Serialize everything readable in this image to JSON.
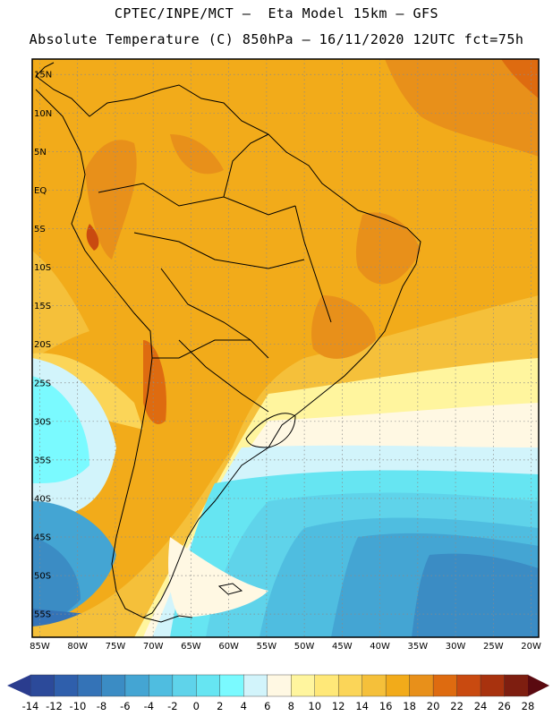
{
  "header": {
    "line1": "CPTEC/INPE/MCT –  Eta Model 15km – GFS",
    "line2": "Absolute Temperature (C) 850hPa – 16/11/2020 12UTC fct=75h"
  },
  "map": {
    "lon_range": [
      -86,
      -19
    ],
    "lat_range": [
      -58,
      17
    ],
    "lat_ticks": [
      "15N",
      "10N",
      "5N",
      "EQ",
      "5S",
      "10S",
      "15S",
      "20S",
      "25S",
      "30S",
      "35S",
      "40S",
      "45S",
      "50S",
      "55S"
    ],
    "lon_ticks": [
      "85W",
      "80W",
      "75W",
      "70W",
      "65W",
      "60W",
      "55W",
      "50W",
      "45W",
      "40W",
      "35W",
      "30W",
      "25W",
      "20W"
    ],
    "gridlines": "dotted"
  },
  "colorbar": {
    "labels": [
      "-14",
      "-12",
      "-10",
      "-8",
      "-6",
      "-4",
      "-2",
      "0",
      "2",
      "4",
      "6",
      "8",
      "10",
      "12",
      "14",
      "16",
      "18",
      "20",
      "22",
      "24",
      "26",
      "28"
    ],
    "low_color": "#2a3c8e",
    "high_color": "#5a0a10",
    "colors": [
      "#2c4a9a",
      "#2f5fac",
      "#3473b7",
      "#3b8cc4",
      "#44a5d3",
      "#4fbde0",
      "#5fd3ea",
      "#66e5f2",
      "#7afaff",
      "#d2f4fb",
      "#fff8e3",
      "#fff59e",
      "#ffe878",
      "#fbd558",
      "#f5c03a",
      "#f2ab1a",
      "#e8901a",
      "#de6b10",
      "#c94a10",
      "#a8320e",
      "#7e1e10"
    ]
  }
}
